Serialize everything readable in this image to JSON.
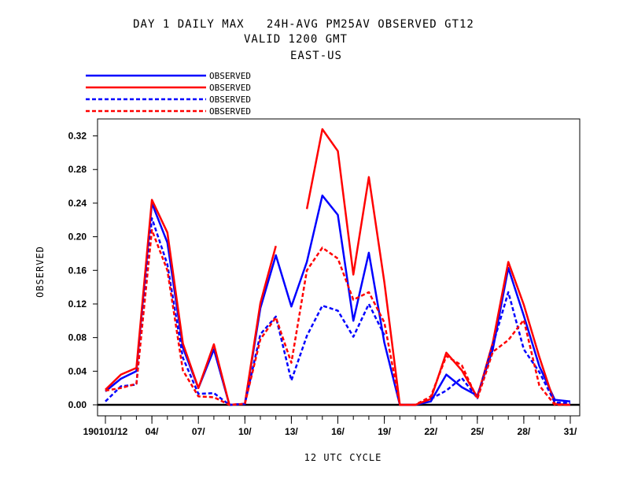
{
  "chart_data": {
    "type": "line",
    "title": "DAY 1 DAILY MAX   24H-AVG PM25AV OBSERVED GT12",
    "subtitle": "VALID 1200 GMT",
    "subtitle2": "EAST-US",
    "xlabel": "12 UTC CYCLE",
    "ylabel": "OBSERVED",
    "ylim": [
      0,
      0.34
    ],
    "yticks": [
      0.0,
      0.04,
      0.08,
      0.12,
      0.16,
      0.2,
      0.24,
      0.28,
      0.32
    ],
    "ytick_labels": [
      "0.00",
      "0.04",
      "0.08",
      "0.12",
      "0.16",
      "0.20",
      "0.24",
      "0.28",
      "0.32"
    ],
    "x": [
      1,
      2,
      3,
      4,
      5,
      6,
      7,
      8,
      9,
      10,
      11,
      12,
      13,
      14,
      15,
      16,
      17,
      18,
      19,
      20,
      21,
      22,
      23,
      24,
      25,
      26,
      27,
      28,
      29,
      30,
      31
    ],
    "xticks": [
      1,
      4,
      7,
      10,
      13,
      16,
      19,
      22,
      25,
      28,
      31
    ],
    "xtick_labels": [
      "190101/12",
      "04/",
      "07/",
      "10/",
      "13/",
      "16/",
      "19/",
      "22/",
      "25/",
      "28/",
      "31/"
    ],
    "legend_position": "top-left",
    "series": [
      {
        "name": "OBSERVED",
        "color": "#0000ff",
        "dash": "solid",
        "values": [
          0.016,
          0.031,
          0.04,
          0.24,
          0.193,
          0.068,
          0.02,
          0.066,
          0.0,
          0.001,
          0.115,
          0.178,
          0.117,
          0.17,
          0.249,
          0.226,
          0.1,
          0.181,
          0.074,
          0.0,
          0.0,
          0.004,
          0.036,
          0.021,
          0.011,
          0.066,
          0.163,
          0.106,
          0.046,
          0.006,
          0.004
        ]
      },
      {
        "name": "OBSERVED",
        "color": "#ff0000",
        "dash": "solid",
        "values": [
          0.018,
          0.036,
          0.044,
          0.244,
          0.205,
          0.073,
          0.02,
          0.072,
          0.0,
          0.001,
          0.121,
          0.189,
          null,
          0.233,
          0.328,
          0.302,
          0.155,
          0.271,
          0.146,
          0.0,
          0.0,
          0.007,
          0.062,
          0.041,
          0.009,
          0.074,
          0.17,
          0.119,
          0.057,
          0.001,
          0.0
        ]
      },
      {
        "name": "OBSERVED",
        "color": "#0000ff",
        "dash": "dashed",
        "values": [
          0.004,
          0.022,
          0.024,
          0.222,
          0.167,
          0.056,
          0.013,
          0.014,
          0.0,
          0.001,
          0.084,
          0.105,
          0.029,
          0.082,
          0.118,
          0.112,
          0.081,
          0.12,
          0.083,
          null,
          null,
          0.007,
          0.017,
          0.032,
          0.008,
          0.071,
          0.134,
          0.066,
          0.039,
          0.003,
          0.002
        ]
      },
      {
        "name": "OBSERVED",
        "color": "#ff0000",
        "dash": "dashed",
        "values": [
          0.017,
          0.02,
          0.025,
          0.208,
          0.16,
          0.041,
          0.01,
          0.009,
          0.0,
          0.001,
          0.078,
          0.104,
          0.05,
          0.16,
          0.187,
          0.174,
          0.125,
          0.134,
          0.098,
          0.0,
          0.0,
          0.01,
          0.058,
          0.047,
          0.007,
          0.063,
          0.077,
          0.101,
          0.023,
          0.0,
          0.0
        ]
      }
    ]
  }
}
